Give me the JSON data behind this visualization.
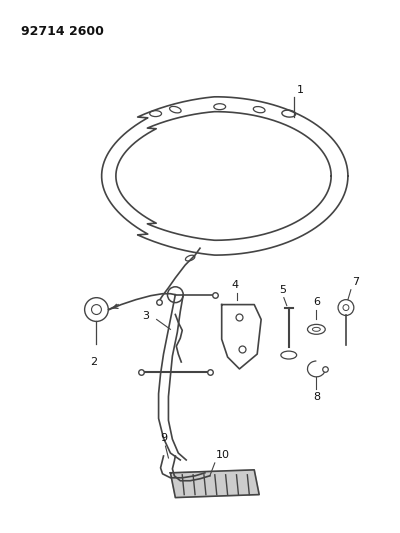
{
  "title_code": "92714 2600",
  "background_color": "#ffffff",
  "line_color": "#444444",
  "text_color": "#111111",
  "fig_width": 4.0,
  "fig_height": 5.33,
  "dpi": 100
}
